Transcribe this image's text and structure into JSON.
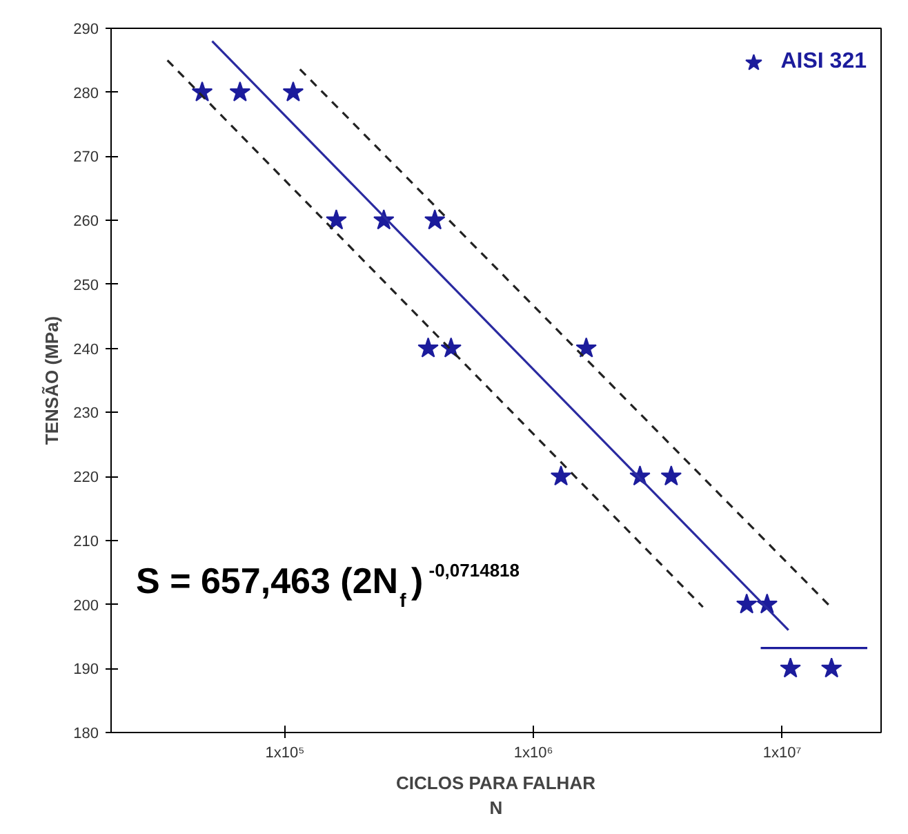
{
  "chart_data": {
    "type": "scatter",
    "xlabel": "CICLOS PARA FALHAR\nN",
    "ylabel": "TENSÃO (MPa)",
    "log": "x",
    "grid": false,
    "legend": "top right",
    "xlim": [
      20000,
      25000000
    ],
    "ylim": [
      180,
      290
    ],
    "xticks": [
      {
        "value": 100000,
        "label": "1x10⁵"
      },
      {
        "value": 1000000,
        "label": "1x10⁶"
      },
      {
        "value": 10000000,
        "label": "1x10⁷"
      }
    ],
    "yticks": [
      180,
      190,
      200,
      210,
      220,
      230,
      240,
      250,
      260,
      270,
      280,
      290
    ],
    "annotations": [
      "S = 657,463 (2N$_{f}$)$^{-0,0714818}$"
    ],
    "series": [
      {
        "name": "AISI 321",
        "marker": "star",
        "color": "#1c1c9c",
        "x": [
          46500,
          66000,
          108000,
          161000,
          250000,
          401000,
          377000,
          466000,
          1630000,
          1290000,
          2680000,
          3580000,
          7200000,
          8700000,
          10800000,
          15800000
        ],
        "values": [
          280,
          280,
          280,
          260,
          260,
          260,
          240,
          240,
          240,
          220,
          220,
          220,
          200,
          200,
          190,
          190
        ]
      },
      {
        "type": "line",
        "color": "#2a2aa0",
        "line_style": "solid",
        "x": [
          51000,
          10600000
        ],
        "values": [
          288,
          196
        ]
      },
      {
        "type": "line",
        "color": "#222222",
        "line_style": "dashed",
        "x": [
          115000,
          15700000
        ],
        "values": [
          283.6,
          199.6
        ]
      },
      {
        "type": "line",
        "color": "#222222",
        "line_style": "dashed",
        "x": [
          33700,
          4800000
        ],
        "values": [
          285,
          199.6
        ]
      },
      {
        "type": "line",
        "color": "#1c1c9c",
        "line_style": "solid",
        "x": [
          8200000,
          22000000
        ],
        "values": [
          193.2,
          193.2
        ]
      }
    ]
  }
}
